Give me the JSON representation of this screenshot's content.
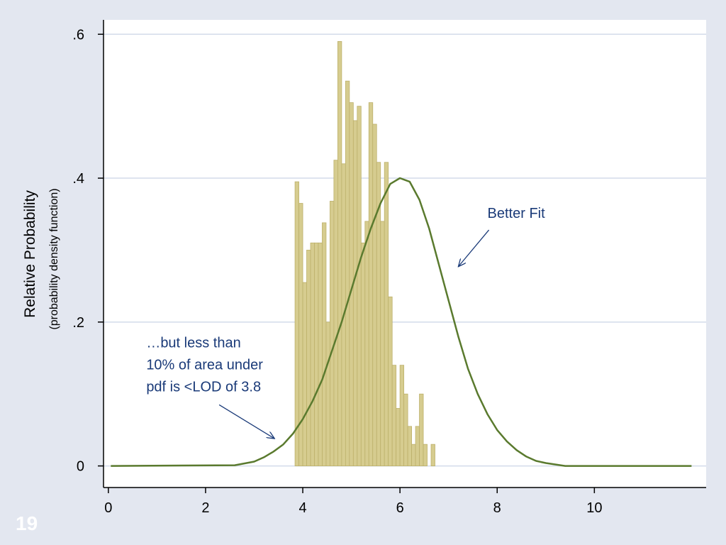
{
  "slide_number": "19",
  "chart_data": {
    "type": "bar",
    "subtype": "histogram-with-density-curve",
    "ylabel": "Relative Probability",
    "ylabel_sub": "(probability density function)",
    "xlim": [
      -0.1,
      12.3
    ],
    "ylim": [
      -0.03,
      0.62
    ],
    "x_ticks": [
      {
        "value": 0,
        "label": "0"
      },
      {
        "value": 2,
        "label": "2"
      },
      {
        "value": 4,
        "label": "4"
      },
      {
        "value": 6,
        "label": "6"
      },
      {
        "value": 8,
        "label": "8"
      },
      {
        "value": 10,
        "label": "10"
      }
    ],
    "y_ticks": [
      {
        "value": 0,
        "label": "0"
      },
      {
        "value": 0.2,
        "label": ".2"
      },
      {
        "value": 0.4,
        "label": ".4"
      },
      {
        "value": 0.6,
        "label": ".6"
      }
    ],
    "grid": true,
    "colors": {
      "bar_fill": "#d6cc8f",
      "bar_stroke": "#bdb16c",
      "curve": "#5a7a2e",
      "annotation": "#1a3a78",
      "plot_background": "#ffffff",
      "grid": "#d3dbea"
    },
    "histogram": {
      "bin_width": 0.08,
      "x_start": 3.84,
      "values": [
        0.395,
        0.365,
        0.255,
        0.3,
        0.31,
        0.31,
        0.31,
        0.338,
        0.2,
        0.368,
        0.425,
        0.59,
        0.42,
        0.535,
        0.505,
        0.48,
        0.5,
        0.31,
        0.34,
        0.505,
        0.475,
        0.422,
        0.34,
        0.422,
        0.235,
        0.14,
        0.08,
        0.14,
        0.1,
        0.055,
        0.03,
        0.055,
        0.1,
        0.03,
        0,
        0.03
      ]
    },
    "density_curve": {
      "x": [
        0.05,
        2.6,
        3.0,
        3.2,
        3.4,
        3.6,
        3.8,
        4.0,
        4.2,
        4.4,
        4.6,
        4.8,
        5.0,
        5.2,
        5.4,
        5.6,
        5.8,
        6.0,
        6.2,
        6.4,
        6.6,
        6.8,
        7.0,
        7.2,
        7.4,
        7.6,
        7.8,
        8.0,
        8.2,
        8.4,
        8.6,
        8.8,
        9.0,
        9.4,
        12.0
      ],
      "y": [
        0,
        0.001,
        0.006,
        0.012,
        0.02,
        0.03,
        0.045,
        0.065,
        0.09,
        0.12,
        0.16,
        0.2,
        0.245,
        0.29,
        0.33,
        0.365,
        0.392,
        0.4,
        0.395,
        0.37,
        0.33,
        0.28,
        0.23,
        0.18,
        0.135,
        0.1,
        0.072,
        0.05,
        0.034,
        0.022,
        0.013,
        0.007,
        0.004,
        0.0,
        0
      ]
    },
    "annotations": [
      {
        "text_lines": [
          "Better Fit"
        ],
        "text_x": 7.8,
        "text_y": 0.345,
        "arrow_from": [
          7.83,
          0.328
        ],
        "arrow_to": [
          7.2,
          0.277
        ]
      },
      {
        "text_lines": [
          "…but less than",
          "10% of area under",
          "pdf is <LOD of 3.8"
        ],
        "text_x": 0.78,
        "text_y": 0.165,
        "arrow_from": [
          2.28,
          0.085
        ],
        "arrow_to": [
          3.42,
          0.038
        ]
      }
    ]
  }
}
